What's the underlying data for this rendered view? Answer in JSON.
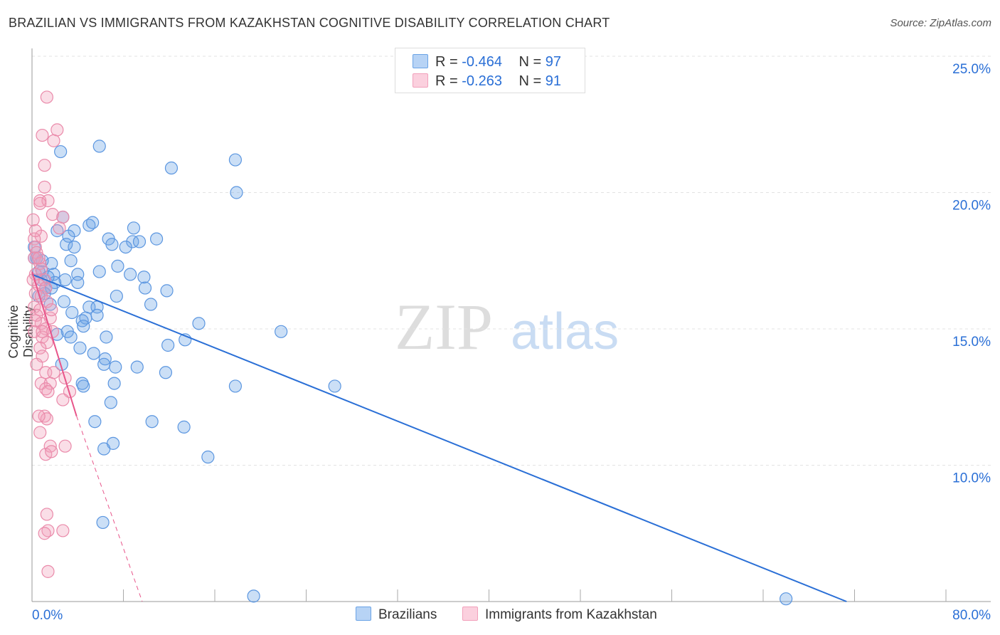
{
  "title": "BRAZILIAN VS IMMIGRANTS FROM KAZAKHSTAN COGNITIVE DISABILITY CORRELATION CHART",
  "source": "Source: ZipAtlas.com",
  "watermark": "ZIPatlas",
  "legend": {
    "rows": [
      {
        "r_label": "R = ",
        "r": "-0.464",
        "n_label": "N = ",
        "n": "97"
      },
      {
        "r_label": "R = ",
        "r": "-0.263",
        "n_label": "N = ",
        "n": "91"
      }
    ]
  },
  "colors": {
    "blue": "#6aa3e6",
    "blue_line": "#2a6fd6",
    "pink": "#f2a0bb",
    "pink_line": "#e8558a"
  },
  "chart_data": {
    "type": "scatter",
    "title": "BRAZILIAN VS IMMIGRANTS FROM KAZAKHSTAN COGNITIVE DISABILITY CORRELATION CHART",
    "xlabel": "",
    "ylabel": "Cognitive Disability",
    "xlim": [
      0,
      80
    ],
    "ylim": [
      5,
      25
    ],
    "x_tick_labels": [
      "0.0%",
      "80.0%"
    ],
    "y_tick_labels": [
      "25.0%",
      "20.0%",
      "15.0%",
      "10.0%"
    ],
    "y_ticks": [
      25,
      20,
      15,
      10
    ],
    "series": [
      {
        "name": "Brazilians",
        "trend": [
          [
            0,
            17.0
          ],
          [
            71.3,
            5.0
          ]
        ],
        "points": [
          [
            2.5,
            21.5
          ],
          [
            5.9,
            21.7
          ],
          [
            12.2,
            20.9
          ],
          [
            17.8,
            21.2
          ],
          [
            17.9,
            20.0
          ],
          [
            2.7,
            19.1
          ],
          [
            5.0,
            18.8
          ],
          [
            5.3,
            18.9
          ],
          [
            2.2,
            18.6
          ],
          [
            3.7,
            18.6
          ],
          [
            3.2,
            18.4
          ],
          [
            8.9,
            18.7
          ],
          [
            10.9,
            18.3
          ],
          [
            6.7,
            18.3
          ],
          [
            7.0,
            18.1
          ],
          [
            8.8,
            18.2
          ],
          [
            9.4,
            18.2
          ],
          [
            8.2,
            18.0
          ],
          [
            3.0,
            18.1
          ],
          [
            3.7,
            18.0
          ],
          [
            0.2,
            18.0
          ],
          [
            0.4,
            17.6
          ],
          [
            3.4,
            17.5
          ],
          [
            1.7,
            17.4
          ],
          [
            7.5,
            17.3
          ],
          [
            5.9,
            17.1
          ],
          [
            4.0,
            17.0
          ],
          [
            8.6,
            17.0
          ],
          [
            9.8,
            16.9
          ],
          [
            0.9,
            17.1
          ],
          [
            1.9,
            17.0
          ],
          [
            2.9,
            16.8
          ],
          [
            2.0,
            16.7
          ],
          [
            4.0,
            16.7
          ],
          [
            1.2,
            16.5
          ],
          [
            1.7,
            16.5
          ],
          [
            9.9,
            16.5
          ],
          [
            11.8,
            16.4
          ],
          [
            7.4,
            16.2
          ],
          [
            2.8,
            16.0
          ],
          [
            10.4,
            15.9
          ],
          [
            1.6,
            15.9
          ],
          [
            5.0,
            15.8
          ],
          [
            5.7,
            15.8
          ],
          [
            3.5,
            15.6
          ],
          [
            4.7,
            15.4
          ],
          [
            5.7,
            15.5
          ],
          [
            4.4,
            15.3
          ],
          [
            14.6,
            15.2
          ],
          [
            4.5,
            15.1
          ],
          [
            3.1,
            14.9
          ],
          [
            2.2,
            14.8
          ],
          [
            3.4,
            14.7
          ],
          [
            6.5,
            14.7
          ],
          [
            21.8,
            14.9
          ],
          [
            13.4,
            14.6
          ],
          [
            11.9,
            14.4
          ],
          [
            4.2,
            14.3
          ],
          [
            5.4,
            14.1
          ],
          [
            6.4,
            13.9
          ],
          [
            6.3,
            13.7
          ],
          [
            7.3,
            13.6
          ],
          [
            9.2,
            13.6
          ],
          [
            11.7,
            13.4
          ],
          [
            2.6,
            13.7
          ],
          [
            4.4,
            13.0
          ],
          [
            4.5,
            12.9
          ],
          [
            7.2,
            13.0
          ],
          [
            17.8,
            12.9
          ],
          [
            26.5,
            12.9
          ],
          [
            6.9,
            12.3
          ],
          [
            5.5,
            11.6
          ],
          [
            10.5,
            11.6
          ],
          [
            13.3,
            11.4
          ],
          [
            7.1,
            10.8
          ],
          [
            6.3,
            10.6
          ],
          [
            15.4,
            10.3
          ],
          [
            6.2,
            7.9
          ],
          [
            19.4,
            5.2
          ],
          [
            66.0,
            5.1
          ],
          [
            0.9,
            17.5
          ],
          [
            0.6,
            17.1
          ],
          [
            0.8,
            16.8
          ],
          [
            1.4,
            16.9
          ],
          [
            1.1,
            16.3
          ],
          [
            0.6,
            16.2
          ],
          [
            0.2,
            17.6
          ]
        ]
      },
      {
        "name": "Immigrants from Kazakhstan",
        "trend": [
          [
            0,
            17.1
          ],
          [
            3.9,
            11.8
          ]
        ],
        "trend_dashed": [
          [
            3.9,
            11.8
          ],
          [
            9.65,
            5.0
          ]
        ],
        "points": [
          [
            1.3,
            23.5
          ],
          [
            2.2,
            22.3
          ],
          [
            0.9,
            22.1
          ],
          [
            1.9,
            21.9
          ],
          [
            1.1,
            21.0
          ],
          [
            1.1,
            20.2
          ],
          [
            0.7,
            19.7
          ],
          [
            1.4,
            19.7
          ],
          [
            0.7,
            19.6
          ],
          [
            1.8,
            19.2
          ],
          [
            2.7,
            19.1
          ],
          [
            0.1,
            19.0
          ],
          [
            2.4,
            18.7
          ],
          [
            0.8,
            18.4
          ],
          [
            0.2,
            18.3
          ],
          [
            0.3,
            18.0
          ],
          [
            0.4,
            17.8
          ],
          [
            0.2,
            17.6
          ],
          [
            0.7,
            17.4
          ],
          [
            0.8,
            17.2
          ],
          [
            0.3,
            17.0
          ],
          [
            1.1,
            16.8
          ],
          [
            0.6,
            16.6
          ],
          [
            1.2,
            16.5
          ],
          [
            0.3,
            16.3
          ],
          [
            0.8,
            16.2
          ],
          [
            1.3,
            16.0
          ],
          [
            0.2,
            15.8
          ],
          [
            0.7,
            15.7
          ],
          [
            0.4,
            15.5
          ],
          [
            1.6,
            15.4
          ],
          [
            0.8,
            15.2
          ],
          [
            1.2,
            15.0
          ],
          [
            0.2,
            14.9
          ],
          [
            1.8,
            14.9
          ],
          [
            0.9,
            14.7
          ],
          [
            1.3,
            14.5
          ],
          [
            0.7,
            14.3
          ],
          [
            0.9,
            14.0
          ],
          [
            0.4,
            13.7
          ],
          [
            1.2,
            13.4
          ],
          [
            1.9,
            13.4
          ],
          [
            2.9,
            13.2
          ],
          [
            0.8,
            13.0
          ],
          [
            1.6,
            13.0
          ],
          [
            1.2,
            12.8
          ],
          [
            1.4,
            12.7
          ],
          [
            3.3,
            12.7
          ],
          [
            2.7,
            12.4
          ],
          [
            1.1,
            11.8
          ],
          [
            1.3,
            11.7
          ],
          [
            0.7,
            11.2
          ],
          [
            1.6,
            10.7
          ],
          [
            2.9,
            10.7
          ],
          [
            1.2,
            10.4
          ],
          [
            1.7,
            10.5
          ],
          [
            1.3,
            8.2
          ],
          [
            1.4,
            7.6
          ],
          [
            1.1,
            7.5
          ],
          [
            2.7,
            7.6
          ],
          [
            1.4,
            6.1
          ],
          [
            0.6,
            11.8
          ],
          [
            0.9,
            14.9
          ],
          [
            0.3,
            15.3
          ],
          [
            1.7,
            15.7
          ],
          [
            0.1,
            16.8
          ],
          [
            0.3,
            18.6
          ],
          [
            0.6,
            17.6
          ]
        ]
      }
    ]
  }
}
